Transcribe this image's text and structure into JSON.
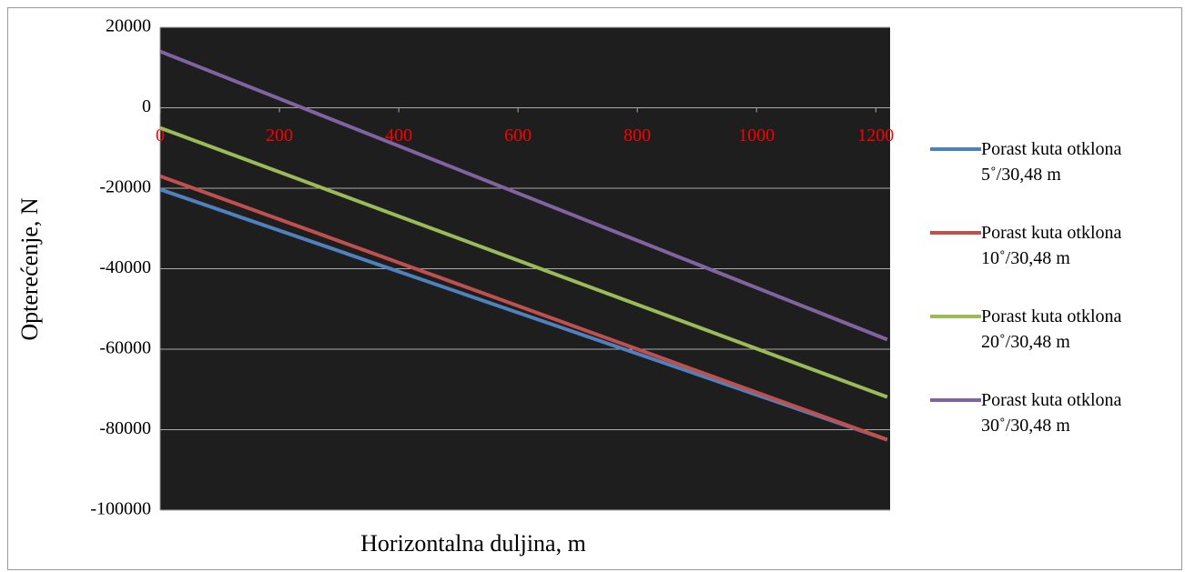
{
  "chart_data": {
    "type": "line",
    "x_label": "Horizontalna duljina, m",
    "y_label": "Opterećenje, N",
    "x": [
      0,
      1219.2
    ],
    "series": [
      {
        "name": "Porast kuta otklona 5˚/30,48 m",
        "color": "#4f81bd",
        "values": [
          -20300,
          -82500
        ]
      },
      {
        "name": "Porast kuta otklona 10˚/30,48 m",
        "color": "#c0504d",
        "values": [
          -17000,
          -82500
        ]
      },
      {
        "name": "Porast kuta otklona 20˚/30,48 m",
        "color": "#9bbb59",
        "values": [
          -5000,
          -71900
        ]
      },
      {
        "name": "Porast kuta otklona 30˚/30,48 m",
        "color": "#8064a2",
        "values": [
          14000,
          -57600
        ]
      }
    ],
    "xlim": [
      0,
      1224
    ],
    "xticks": [
      0,
      200,
      400,
      600,
      800,
      1000,
      1200
    ],
    "ylim": [
      -100000,
      20000
    ],
    "yticks": [
      -100000,
      -80000,
      -60000,
      -40000,
      -20000,
      0,
      20000
    ],
    "grid": true,
    "plot_background": "#1e1e1e",
    "xtick_color": "#ff0000",
    "legend": "right"
  }
}
